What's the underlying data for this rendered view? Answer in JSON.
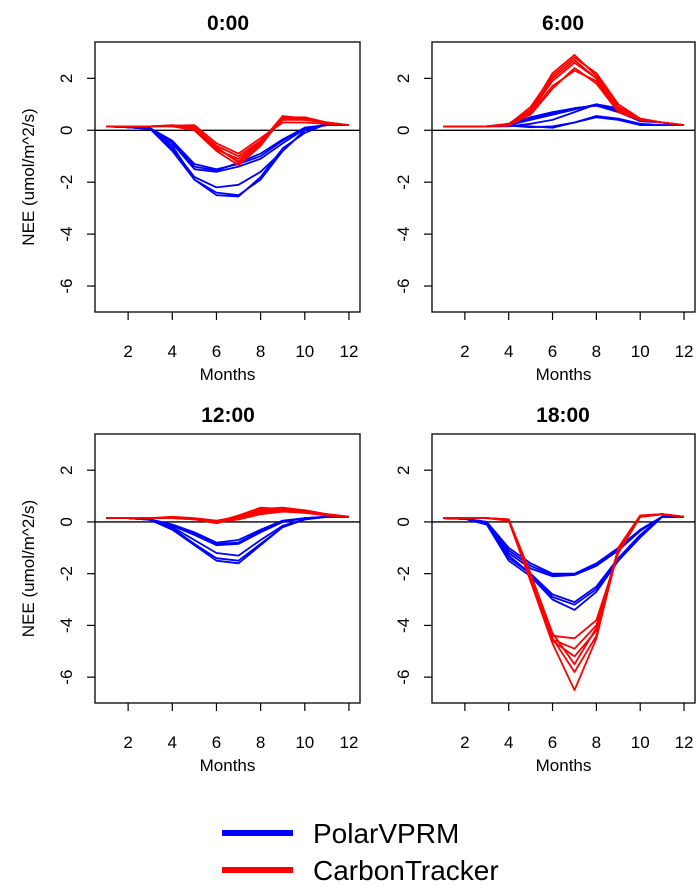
{
  "chart_data": [
    {
      "type": "line",
      "title": "0:00",
      "xlabel": "Months",
      "ylabel": "NEE (umol/m^2/s)",
      "x": [
        1,
        2,
        3,
        4,
        5,
        6,
        7,
        8,
        9,
        10,
        11,
        12
      ],
      "xticks": [
        2,
        4,
        6,
        8,
        10,
        12
      ],
      "yticks": [
        2,
        0,
        -2,
        -4,
        -6
      ],
      "xlim": [
        0.5,
        12.5
      ],
      "ylim": [
        -7,
        3.4
      ],
      "zero_line": true,
      "series": [
        {
          "name": "PolarVPRM",
          "color": "#0000FF",
          "lines": [
            [
              0.15,
              0.12,
              0.08,
              -0.4,
              -1.3,
              -1.5,
              -1.3,
              -1.0,
              -0.4,
              0.1,
              0.2,
              0.2
            ],
            [
              0.15,
              0.12,
              0.06,
              -0.5,
              -1.5,
              -1.6,
              -1.4,
              -1.1,
              -0.5,
              0.05,
              0.2,
              0.2
            ],
            [
              0.15,
              0.12,
              0.05,
              -0.7,
              -1.8,
              -2.2,
              -2.1,
              -1.6,
              -0.8,
              0.0,
              0.25,
              0.2
            ],
            [
              0.15,
              0.12,
              0.05,
              -0.6,
              -1.9,
              -2.4,
              -2.5,
              -1.9,
              -0.8,
              0.0,
              0.25,
              0.2
            ],
            [
              0.15,
              0.12,
              0.05,
              -0.8,
              -1.9,
              -2.5,
              -2.55,
              -1.8,
              -0.7,
              -0.1,
              0.25,
              0.2
            ],
            [
              0.15,
              0.12,
              0.07,
              -0.45,
              -1.4,
              -1.55,
              -1.25,
              -0.9,
              -0.35,
              0.1,
              0.2,
              0.2
            ]
          ]
        },
        {
          "name": "CarbonTracker",
          "color": "#FF0000",
          "lines": [
            [
              0.15,
              0.15,
              0.15,
              0.2,
              0.1,
              -0.6,
              -1.0,
              -0.4,
              0.4,
              0.4,
              0.3,
              0.2
            ],
            [
              0.15,
              0.15,
              0.15,
              0.18,
              0.05,
              -0.7,
              -1.2,
              -0.5,
              0.5,
              0.45,
              0.3,
              0.2
            ],
            [
              0.15,
              0.15,
              0.15,
              0.15,
              0.0,
              -0.8,
              -1.35,
              -0.6,
              0.5,
              0.5,
              0.3,
              0.2
            ],
            [
              0.15,
              0.15,
              0.15,
              0.18,
              0.2,
              -0.5,
              -0.9,
              -0.3,
              0.3,
              0.3,
              0.25,
              0.2
            ],
            [
              0.15,
              0.15,
              0.15,
              0.16,
              0.05,
              -0.75,
              -1.1,
              -0.45,
              0.55,
              0.45,
              0.3,
              0.2
            ],
            [
              0.15,
              0.15,
              0.15,
              0.17,
              0.15,
              -0.65,
              -1.25,
              -0.55,
              0.45,
              0.4,
              0.3,
              0.2
            ]
          ]
        }
      ]
    },
    {
      "type": "line",
      "title": "6:00",
      "xlabel": "Months",
      "ylabel": "",
      "x": [
        1,
        2,
        3,
        4,
        5,
        6,
        7,
        8,
        9,
        10,
        11,
        12
      ],
      "xticks": [
        2,
        4,
        6,
        8,
        10,
        12
      ],
      "yticks": [
        2,
        0,
        -2,
        -4,
        -6
      ],
      "xlim": [
        0.5,
        12.5
      ],
      "ylim": [
        -7,
        3.4
      ],
      "zero_line": true,
      "series": [
        {
          "name": "PolarVPRM",
          "color": "#0000FF",
          "lines": [
            [
              0.15,
              0.15,
              0.15,
              0.2,
              0.4,
              0.6,
              0.8,
              1.0,
              0.8,
              0.4,
              0.3,
              0.2
            ],
            [
              0.15,
              0.15,
              0.15,
              0.25,
              0.45,
              0.65,
              0.85,
              0.95,
              0.75,
              0.4,
              0.3,
              0.2
            ],
            [
              0.15,
              0.15,
              0.15,
              0.15,
              0.25,
              0.4,
              0.7,
              1.0,
              0.85,
              0.4,
              0.3,
              0.2
            ],
            [
              0.15,
              0.15,
              0.15,
              0.2,
              0.15,
              0.1,
              0.3,
              0.5,
              0.4,
              0.2,
              0.2,
              0.2
            ],
            [
              0.15,
              0.15,
              0.15,
              0.18,
              0.12,
              0.15,
              0.3,
              0.55,
              0.45,
              0.25,
              0.2,
              0.2
            ],
            [
              0.15,
              0.15,
              0.15,
              0.22,
              0.5,
              0.7,
              0.85,
              0.95,
              0.7,
              0.35,
              0.3,
              0.2
            ]
          ]
        },
        {
          "name": "CarbonTracker",
          "color": "#FF0000",
          "lines": [
            [
              0.15,
              0.15,
              0.15,
              0.2,
              0.6,
              1.6,
              2.4,
              1.8,
              0.7,
              0.4,
              0.3,
              0.2
            ],
            [
              0.15,
              0.15,
              0.15,
              0.25,
              0.8,
              2.2,
              2.9,
              2.1,
              0.9,
              0.45,
              0.3,
              0.2
            ],
            [
              0.15,
              0.15,
              0.15,
              0.2,
              0.7,
              1.9,
              2.6,
              2.0,
              0.8,
              0.4,
              0.3,
              0.2
            ],
            [
              0.15,
              0.15,
              0.15,
              0.22,
              0.9,
              2.1,
              2.8,
              2.2,
              1.0,
              0.45,
              0.3,
              0.2
            ],
            [
              0.15,
              0.15,
              0.15,
              0.18,
              0.65,
              1.7,
              2.3,
              1.9,
              0.8,
              0.4,
              0.3,
              0.2
            ],
            [
              0.15,
              0.15,
              0.15,
              0.2,
              0.75,
              2.0,
              2.7,
              2.0,
              0.85,
              0.42,
              0.3,
              0.2
            ]
          ]
        }
      ]
    },
    {
      "type": "line",
      "title": "12:00",
      "xlabel": "Months",
      "ylabel": "NEE (umol/m^2/s)",
      "x": [
        1,
        2,
        3,
        4,
        5,
        6,
        7,
        8,
        9,
        10,
        11,
        12
      ],
      "xticks": [
        2,
        4,
        6,
        8,
        10,
        12
      ],
      "yticks": [
        2,
        0,
        -2,
        -4,
        -6
      ],
      "xlim": [
        0.5,
        12.5
      ],
      "ylim": [
        -7,
        3.4
      ],
      "zero_line": true,
      "series": [
        {
          "name": "PolarVPRM",
          "color": "#0000FF",
          "lines": [
            [
              0.15,
              0.15,
              0.1,
              -0.1,
              -0.4,
              -0.8,
              -0.7,
              -0.3,
              0.05,
              0.15,
              0.2,
              0.2
            ],
            [
              0.15,
              0.15,
              0.1,
              -0.15,
              -0.5,
              -0.9,
              -0.85,
              -0.4,
              0.0,
              0.15,
              0.2,
              0.2
            ],
            [
              0.15,
              0.15,
              0.1,
              -0.2,
              -0.7,
              -1.2,
              -1.3,
              -0.7,
              -0.15,
              0.1,
              0.2,
              0.2
            ],
            [
              0.15,
              0.15,
              0.08,
              -0.3,
              -0.9,
              -1.5,
              -1.6,
              -0.9,
              -0.2,
              0.1,
              0.2,
              0.2
            ],
            [
              0.15,
              0.15,
              0.08,
              -0.25,
              -0.85,
              -1.4,
              -1.5,
              -0.85,
              -0.2,
              0.1,
              0.2,
              0.2
            ],
            [
              0.15,
              0.15,
              0.1,
              -0.12,
              -0.45,
              -0.85,
              -0.8,
              -0.35,
              0.0,
              0.15,
              0.2,
              0.2
            ]
          ]
        },
        {
          "name": "CarbonTracker",
          "color": "#FF0000",
          "lines": [
            [
              0.15,
              0.15,
              0.15,
              0.15,
              0.1,
              0.0,
              0.1,
              0.3,
              0.4,
              0.35,
              0.25,
              0.2
            ],
            [
              0.15,
              0.15,
              0.15,
              0.2,
              0.15,
              0.05,
              0.2,
              0.5,
              0.55,
              0.45,
              0.3,
              0.2
            ],
            [
              0.15,
              0.15,
              0.15,
              0.15,
              0.1,
              -0.05,
              0.15,
              0.4,
              0.5,
              0.4,
              0.3,
              0.2
            ],
            [
              0.15,
              0.15,
              0.15,
              0.18,
              0.12,
              0.0,
              0.25,
              0.55,
              0.5,
              0.45,
              0.3,
              0.2
            ],
            [
              0.15,
              0.15,
              0.15,
              0.16,
              0.1,
              0.02,
              0.1,
              0.35,
              0.45,
              0.4,
              0.25,
              0.2
            ],
            [
              0.15,
              0.15,
              0.15,
              0.17,
              0.13,
              0.03,
              0.18,
              0.45,
              0.52,
              0.42,
              0.28,
              0.2
            ]
          ]
        }
      ]
    },
    {
      "type": "line",
      "title": "18:00",
      "xlabel": "Months",
      "ylabel": "",
      "x": [
        1,
        2,
        3,
        4,
        5,
        6,
        7,
        8,
        9,
        10,
        11,
        12
      ],
      "xticks": [
        2,
        4,
        6,
        8,
        10,
        12
      ],
      "yticks": [
        2,
        0,
        -2,
        -4,
        -6
      ],
      "xlim": [
        0.5,
        12.5
      ],
      "ylim": [
        -7,
        3.4
      ],
      "zero_line": true,
      "series": [
        {
          "name": "PolarVPRM",
          "color": "#0000FF",
          "lines": [
            [
              0.15,
              0.12,
              0.0,
              -1.0,
              -1.6,
              -2.0,
              -2.0,
              -1.6,
              -1.0,
              -0.3,
              0.2,
              0.2
            ],
            [
              0.15,
              0.12,
              -0.05,
              -1.2,
              -1.8,
              -2.1,
              -2.05,
              -1.7,
              -1.1,
              -0.35,
              0.2,
              0.2
            ],
            [
              0.15,
              0.12,
              -0.1,
              -1.4,
              -2.0,
              -2.8,
              -3.1,
              -2.5,
              -1.4,
              -0.5,
              0.2,
              0.2
            ],
            [
              0.15,
              0.12,
              -0.1,
              -1.5,
              -2.1,
              -3.0,
              -3.4,
              -2.7,
              -1.5,
              -0.6,
              0.2,
              0.2
            ],
            [
              0.15,
              0.12,
              -0.1,
              -1.3,
              -2.0,
              -2.9,
              -3.2,
              -2.6,
              -1.45,
              -0.55,
              0.2,
              0.2
            ],
            [
              0.15,
              0.12,
              0.0,
              -1.1,
              -1.7,
              -2.05,
              -2.02,
              -1.65,
              -1.05,
              -0.32,
              0.2,
              0.2
            ]
          ]
        },
        {
          "name": "CarbonTracker",
          "color": "#FF0000",
          "lines": [
            [
              0.15,
              0.15,
              0.15,
              0.1,
              -2.0,
              -4.4,
              -4.5,
              -3.8,
              -1.2,
              0.2,
              0.3,
              0.2
            ],
            [
              0.15,
              0.15,
              0.15,
              0.05,
              -2.2,
              -4.6,
              -5.2,
              -4.2,
              -1.0,
              0.25,
              0.3,
              0.2
            ],
            [
              0.15,
              0.15,
              0.15,
              0.1,
              -2.1,
              -4.5,
              -5.8,
              -4.4,
              -1.1,
              0.2,
              0.3,
              0.2
            ],
            [
              0.15,
              0.15,
              0.15,
              0.05,
              -2.3,
              -4.7,
              -6.5,
              -4.5,
              -1.0,
              0.25,
              0.3,
              0.2
            ],
            [
              0.15,
              0.15,
              0.15,
              0.1,
              -2.0,
              -4.3,
              -5.5,
              -4.1,
              -1.1,
              0.2,
              0.3,
              0.2
            ],
            [
              0.15,
              0.15,
              0.15,
              0.08,
              -2.15,
              -4.55,
              -4.9,
              -4.0,
              -1.05,
              0.22,
              0.3,
              0.2
            ]
          ]
        }
      ]
    }
  ],
  "legend": {
    "placement": "bottom-center",
    "entries": [
      {
        "label": "PolarVPRM",
        "color": "#0000FF"
      },
      {
        "label": "CarbonTracker",
        "color": "#FF0000"
      }
    ]
  }
}
